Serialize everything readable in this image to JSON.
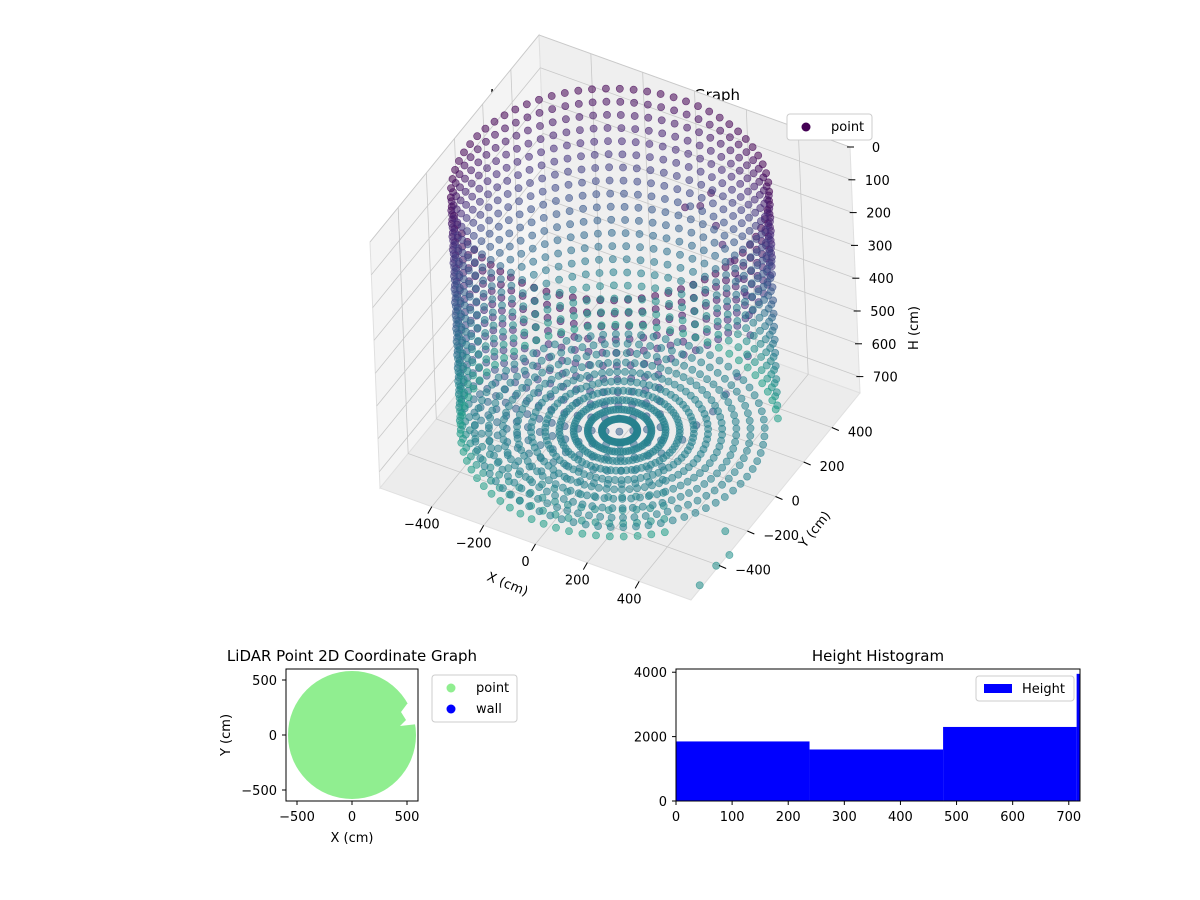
{
  "figure": {
    "colors": {
      "viridis": [
        "#440154",
        "#482878",
        "#3e4a89",
        "#31688e",
        "#26828e",
        "#1f9e89"
      ],
      "scatter2d": "#90ee90",
      "wall": "#0000ff",
      "hist": "#0000ff",
      "pane": "#f2f2f2",
      "grid": "#c8c8c8"
    }
  },
  "chart_data": [
    {
      "type": "scatter",
      "subtype": "3d",
      "title": "LiDAR Point 3D Coordinate Graph",
      "xlabel": "X (cm)",
      "ylabel": "Y (cm)",
      "zlabel": "H (cm)",
      "xlim": [
        -600,
        600
      ],
      "ylim": [
        -600,
        600
      ],
      "zlim": [
        750,
        0
      ],
      "z_inverted": true,
      "x_ticks": [
        "−400",
        "−200",
        "0",
        "200",
        "400"
      ],
      "y_ticks": [
        "−400",
        "−200",
        "0",
        "200",
        "400"
      ],
      "z_ticks": [
        "0",
        "100",
        "200",
        "300",
        "400",
        "500",
        "600",
        "700"
      ],
      "legend": [
        "point"
      ],
      "legend_position": "top-right",
      "grid": true,
      "colormap": "viridis",
      "shape": "cylindrical wall of radius about 540 cm with rings at heights 0–720 cm, scan rays on floor, and a scattered cluster of obstructions near x 200–500 cm",
      "series": [
        {
          "name": "point",
          "wall_radius": 540,
          "ring_heights": [
            0,
            40,
            80,
            120,
            160,
            200,
            240,
            280,
            320,
            360,
            400,
            440,
            480,
            520,
            560,
            600,
            640,
            680,
            720
          ],
          "ray_count": 72,
          "cluster": [
            [
              205,
              150,
              60
            ],
            [
              230,
              210,
              80
            ],
            [
              260,
              235,
              45
            ],
            [
              300,
              190,
              110
            ],
            [
              340,
              160,
              140
            ],
            [
              380,
              140,
              170
            ],
            [
              420,
              120,
              200
            ],
            [
              460,
              100,
              230
            ],
            [
              490,
              60,
              260
            ],
            [
              510,
              30,
              300
            ],
            [
              520,
              -10,
              340
            ],
            [
              505,
              -60,
              380
            ],
            [
              480,
              -100,
              420
            ],
            [
              450,
              -140,
              460
            ],
            [
              400,
              -170,
              500
            ],
            [
              360,
              -200,
              540
            ]
          ],
          "outliers": [
            [
              560,
              -280,
              720
            ],
            [
              600,
              -420,
              740
            ],
            [
              630,
              -380,
              720
            ],
            [
              590,
              -520,
              750
            ]
          ]
        }
      ]
    },
    {
      "type": "scatter",
      "title": "LiDAR Point 2D Coordinate Graph",
      "xlabel": "X (cm)",
      "ylabel": "Y (cm)",
      "xlim": [
        -600,
        600
      ],
      "ylim": [
        -600,
        600
      ],
      "x_ticks": [
        -500,
        0,
        500
      ],
      "y_ticks": [
        -500,
        0,
        500
      ],
      "tick_labels_x": [
        "−500",
        "0",
        "500"
      ],
      "tick_labels_y": [
        "−500",
        "0",
        "500"
      ],
      "grid": false,
      "legend": [
        "point",
        "wall"
      ],
      "legend_position": "outside-right",
      "series": [
        {
          "name": "point",
          "marker": "filled disc of radius about 560 cm, clipped to axes"
        },
        {
          "name": "wall",
          "marker": "no visible points"
        }
      ]
    },
    {
      "type": "bar",
      "subtype": "histogram",
      "title": "Height Histogram",
      "xlabel": "",
      "ylabel": "",
      "xlim": [
        0,
        720
      ],
      "ylim": [
        0,
        4100
      ],
      "x_ticks": [
        0,
        100,
        200,
        300,
        400,
        500,
        600,
        700
      ],
      "y_ticks": [
        0,
        2000,
        4000
      ],
      "grid": false,
      "legend": [
        "Height"
      ],
      "legend_position": "top-right",
      "bins": [
        {
          "from": 0,
          "to": 238,
          "count": 1850
        },
        {
          "from": 238,
          "to": 476,
          "count": 1600
        },
        {
          "from": 476,
          "to": 714,
          "count": 2300
        },
        {
          "from": 714,
          "to": 720,
          "count": 3950
        }
      ]
    }
  ]
}
